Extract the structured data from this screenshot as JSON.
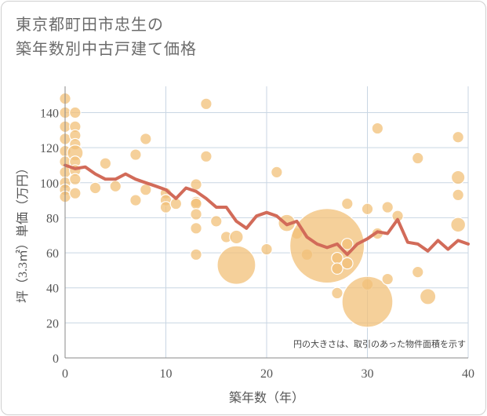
{
  "chart_data": {
    "type": "scatter",
    "title": [
      "東京都町田市忠生の",
      "築年数別中古戸建て価格"
    ],
    "xlabel": "築年数（年）",
    "ylabel": "坪（3.3㎡）単価（万円）",
    "xlim": [
      0,
      40
    ],
    "ylim": [
      0,
      155
    ],
    "xticks": [
      0,
      10,
      20,
      30,
      40
    ],
    "yticks": [
      0,
      20,
      40,
      60,
      80,
      100,
      120,
      140
    ],
    "grid": true,
    "note": "円の大きさは、取引のあった物件面積を示す",
    "point_color": "#f2c078",
    "line_color": "#d26b59",
    "points": [
      {
        "x": 0,
        "y": 148,
        "s": 1
      },
      {
        "x": 0,
        "y": 140,
        "s": 1
      },
      {
        "x": 0,
        "y": 132,
        "s": 1
      },
      {
        "x": 0,
        "y": 125,
        "s": 1
      },
      {
        "x": 0,
        "y": 118,
        "s": 1
      },
      {
        "x": 0,
        "y": 112,
        "s": 1
      },
      {
        "x": 0,
        "y": 106,
        "s": 1
      },
      {
        "x": 0,
        "y": 100,
        "s": 1
      },
      {
        "x": 0,
        "y": 96,
        "s": 1
      },
      {
        "x": 0,
        "y": 92,
        "s": 1
      },
      {
        "x": 1,
        "y": 140,
        "s": 1
      },
      {
        "x": 1,
        "y": 132,
        "s": 1
      },
      {
        "x": 1,
        "y": 127,
        "s": 1
      },
      {
        "x": 1,
        "y": 122,
        "s": 1
      },
      {
        "x": 1,
        "y": 117,
        "s": 1.4
      },
      {
        "x": 1,
        "y": 112,
        "s": 1
      },
      {
        "x": 1,
        "y": 107,
        "s": 1
      },
      {
        "x": 1,
        "y": 102,
        "s": 1
      },
      {
        "x": 1,
        "y": 94,
        "s": 1
      },
      {
        "x": 3,
        "y": 97,
        "s": 1
      },
      {
        "x": 4,
        "y": 111,
        "s": 1
      },
      {
        "x": 5,
        "y": 98,
        "s": 1
      },
      {
        "x": 7,
        "y": 116,
        "s": 1
      },
      {
        "x": 7,
        "y": 90,
        "s": 1
      },
      {
        "x": 8,
        "y": 125,
        "s": 1
      },
      {
        "x": 8,
        "y": 96,
        "s": 1
      },
      {
        "x": 10,
        "y": 94,
        "s": 1
      },
      {
        "x": 10,
        "y": 90,
        "s": 1
      },
      {
        "x": 10,
        "y": 86,
        "s": 1
      },
      {
        "x": 11,
        "y": 88,
        "s": 1
      },
      {
        "x": 13,
        "y": 99,
        "s": 1
      },
      {
        "x": 13,
        "y": 89,
        "s": 1
      },
      {
        "x": 13,
        "y": 88,
        "s": 1
      },
      {
        "x": 13,
        "y": 82,
        "s": 1
      },
      {
        "x": 13,
        "y": 74,
        "s": 1
      },
      {
        "x": 13,
        "y": 59,
        "s": 1
      },
      {
        "x": 14,
        "y": 145,
        "s": 1
      },
      {
        "x": 14,
        "y": 115,
        "s": 1
      },
      {
        "x": 15,
        "y": 78,
        "s": 1
      },
      {
        "x": 16,
        "y": 69,
        "s": 1
      },
      {
        "x": 17,
        "y": 69,
        "s": 1.2
      },
      {
        "x": 17,
        "y": 53,
        "s": 3.4
      },
      {
        "x": 20,
        "y": 62,
        "s": 1
      },
      {
        "x": 21,
        "y": 106,
        "s": 1
      },
      {
        "x": 22,
        "y": 77,
        "s": 1.5
      },
      {
        "x": 23,
        "y": 71,
        "s": 1
      },
      {
        "x": 24,
        "y": 59,
        "s": 1
      },
      {
        "x": 26,
        "y": 64,
        "s": 6.6
      },
      {
        "x": 27,
        "y": 57,
        "s": 1
      },
      {
        "x": 27,
        "y": 51,
        "s": 1
      },
      {
        "x": 27,
        "y": 37,
        "s": 1
      },
      {
        "x": 28,
        "y": 88,
        "s": 1
      },
      {
        "x": 28,
        "y": 65,
        "s": 1
      },
      {
        "x": 28,
        "y": 54,
        "s": 1
      },
      {
        "x": 30,
        "y": 85,
        "s": 1
      },
      {
        "x": 30,
        "y": 42,
        "s": 1
      },
      {
        "x": 30,
        "y": 32,
        "s": 4.5
      },
      {
        "x": 31,
        "y": 131,
        "s": 1
      },
      {
        "x": 31,
        "y": 71,
        "s": 1
      },
      {
        "x": 32,
        "y": 86,
        "s": 1
      },
      {
        "x": 32,
        "y": 45,
        "s": 1
      },
      {
        "x": 33,
        "y": 81,
        "s": 1
      },
      {
        "x": 35,
        "y": 114,
        "s": 1
      },
      {
        "x": 35,
        "y": 49,
        "s": 1
      },
      {
        "x": 36,
        "y": 35,
        "s": 1.4
      },
      {
        "x": 39,
        "y": 126,
        "s": 1
      },
      {
        "x": 39,
        "y": 103,
        "s": 1.2
      },
      {
        "x": 39,
        "y": 93,
        "s": 1
      },
      {
        "x": 39,
        "y": 76,
        "s": 1.3
      }
    ],
    "line": {
      "x": [
        0,
        1,
        2,
        3,
        4,
        5,
        6,
        7,
        8,
        9,
        10,
        11,
        12,
        13,
        14,
        15,
        16,
        17,
        18,
        19,
        20,
        21,
        22,
        23,
        24,
        25,
        26,
        27,
        28,
        29,
        30,
        31,
        32,
        33,
        34,
        35,
        36,
        37,
        38,
        39,
        40
      ],
      "y": [
        110,
        108,
        109,
        105,
        102,
        102,
        105,
        102,
        100,
        98,
        96,
        91,
        97,
        95,
        91,
        86,
        86,
        78,
        74,
        81,
        83,
        81,
        76,
        78,
        69,
        65,
        63,
        65,
        59,
        65,
        68,
        72,
        71,
        79,
        66,
        65,
        61,
        67,
        62,
        67,
        65
      ]
    }
  }
}
